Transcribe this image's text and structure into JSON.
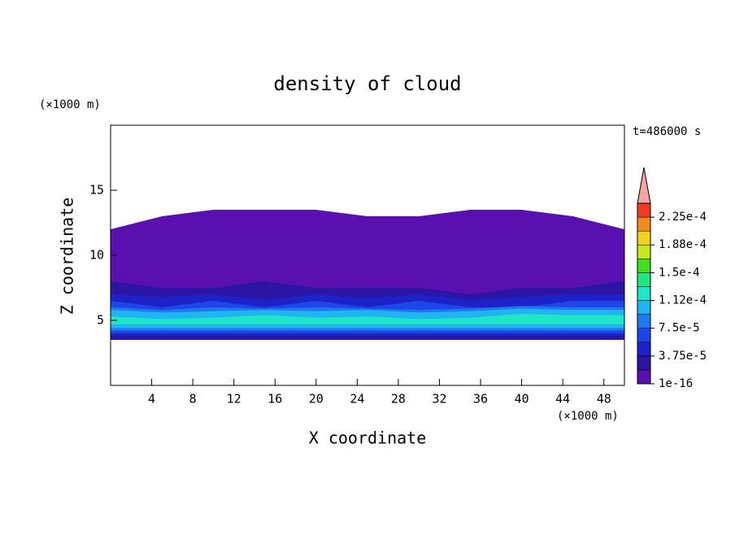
{
  "chart_data": {
    "type": "contour",
    "title": "density of cloud",
    "x_label": "X coordinate",
    "y_label": "Z coordinate",
    "x_unit": "(×1000 m)",
    "y_unit": "(×1000 m)",
    "annotation": "t=486000 s",
    "xlim": [
      0,
      50
    ],
    "ylim": [
      0,
      20
    ],
    "xticks": [
      4,
      8,
      12,
      16,
      20,
      24,
      28,
      32,
      36,
      40,
      44,
      48
    ],
    "yticks": [
      5,
      10,
      15
    ],
    "x": [
      0,
      5,
      10,
      15,
      20,
      25,
      30,
      35,
      40,
      45,
      50
    ],
    "layers": [
      {
        "level": 0,
        "base": 3.5,
        "top": [
          12,
          13,
          13.5,
          13.5,
          13.5,
          13,
          13,
          13.5,
          13.5,
          13,
          12
        ]
      },
      {
        "level": 1,
        "base": 3.5,
        "top": [
          8,
          7.5,
          7.5,
          8,
          7.5,
          7.5,
          7.5,
          7,
          7.5,
          7.5,
          8
        ]
      },
      {
        "level": 2,
        "base": 3.8,
        "top": [
          7,
          6.8,
          7,
          6.6,
          7,
          6.7,
          7,
          6.6,
          6.8,
          7,
          7
        ]
      },
      {
        "level": 3,
        "base": 4,
        "top": [
          6.5,
          6,
          6.5,
          6,
          6.5,
          6,
          6.5,
          6,
          6,
          6.5,
          6.5
        ]
      },
      {
        "level": 4,
        "base": 4.2,
        "top": [
          6,
          5.8,
          6,
          5.9,
          6,
          5.9,
          5.8,
          5.9,
          6.1,
          6,
          6
        ]
      },
      {
        "level": 5,
        "base": 4.4,
        "top": [
          5.8,
          5.6,
          5.7,
          5.8,
          5.7,
          5.8,
          5.6,
          5.7,
          5.9,
          5.8,
          5.8
        ]
      },
      {
        "level": 6,
        "base": 4.7,
        "top": [
          5.3,
          5.1,
          5.2,
          5.4,
          5.2,
          5.3,
          5.1,
          5.2,
          5.5,
          5.4,
          5.4
        ]
      }
    ],
    "colorbar": {
      "lim": [
        0,
        0.00024375
      ],
      "colors": [
        "#5a10b0",
        "#2c14a4",
        "#1c22c8",
        "#1e46e6",
        "#1e78f0",
        "#20b4f0",
        "#20e6c8",
        "#20e680",
        "#40e020",
        "#c8e61e",
        "#f0d21e",
        "#f08c1e",
        "#f03c1e"
      ],
      "extend_color": "#f4a4a4",
      "ticks": [
        {
          "value": 1e-16,
          "label": "1e-16"
        },
        {
          "value": 3.75e-05,
          "label": "3.75e-5"
        },
        {
          "value": 7.5e-05,
          "label": "7.5e-5"
        },
        {
          "value": 0.0001125,
          "label": "1.12e-4"
        },
        {
          "value": 0.00015,
          "label": "1.5e-4"
        },
        {
          "value": 0.0001875,
          "label": "1.88e-4"
        },
        {
          "value": 0.000225,
          "label": "2.25e-4"
        }
      ]
    }
  }
}
